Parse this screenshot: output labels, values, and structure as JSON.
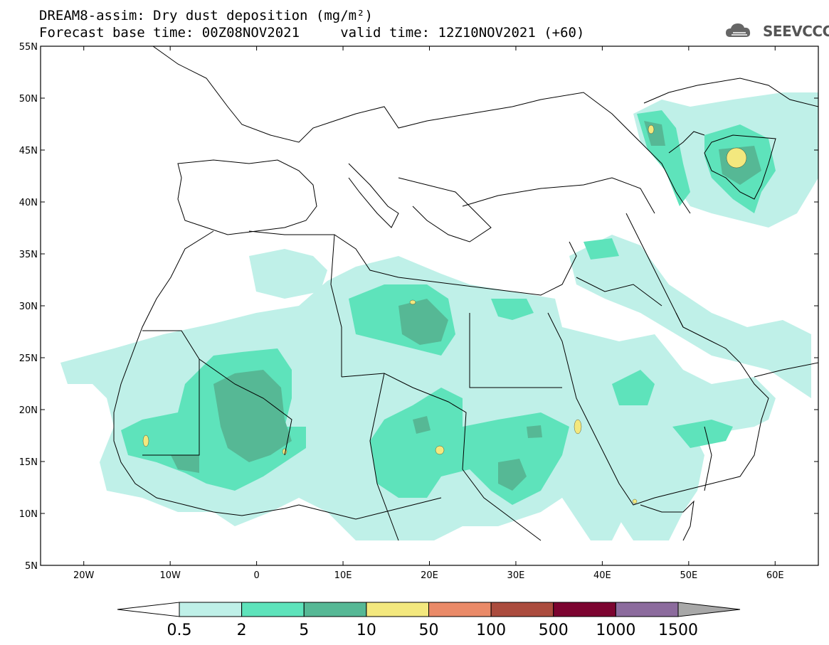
{
  "title": {
    "line1": "DREAM8-assim: Dry dust deposition (mg/m²)",
    "line2": "Forecast base time: 00Z08NOV2021     valid time: 12Z10NOV2021 (+60)"
  },
  "logo": {
    "text": "SEEVCCC",
    "icon": "cloud-icon"
  },
  "map": {
    "lon_range": [
      -25,
      65
    ],
    "lat_range": [
      5,
      55
    ],
    "lon_ticks": [
      {
        "value": -20,
        "label": "20W"
      },
      {
        "value": -10,
        "label": "10W"
      },
      {
        "value": 0,
        "label": "0"
      },
      {
        "value": 10,
        "label": "10E"
      },
      {
        "value": 20,
        "label": "20E"
      },
      {
        "value": 30,
        "label": "30E"
      },
      {
        "value": 40,
        "label": "40E"
      },
      {
        "value": 50,
        "label": "50E"
      },
      {
        "value": 60,
        "label": "60E"
      }
    ],
    "lat_ticks": [
      {
        "value": 55,
        "label": "55N"
      },
      {
        "value": 50,
        "label": "50N"
      },
      {
        "value": 45,
        "label": "45N"
      },
      {
        "value": 40,
        "label": "40N"
      },
      {
        "value": 35,
        "label": "35N"
      },
      {
        "value": 30,
        "label": "30N"
      },
      {
        "value": 25,
        "label": "25N"
      },
      {
        "value": 20,
        "label": "20N"
      },
      {
        "value": 15,
        "label": "15N"
      },
      {
        "value": 10,
        "label": "10N"
      },
      {
        "value": 5,
        "label": "5N"
      }
    ]
  },
  "colorbar": {
    "colors": [
      "#ffffff",
      "#bff0e8",
      "#5ee3bb",
      "#56b895",
      "#f3e87e",
      "#ea8a68",
      "#ab4c3e",
      "#7c0430",
      "#8c6b9d",
      "#a8a8a8"
    ],
    "labels": [
      "0.5",
      "2",
      "5",
      "10",
      "50",
      "100",
      "500",
      "1000",
      "1500"
    ]
  }
}
